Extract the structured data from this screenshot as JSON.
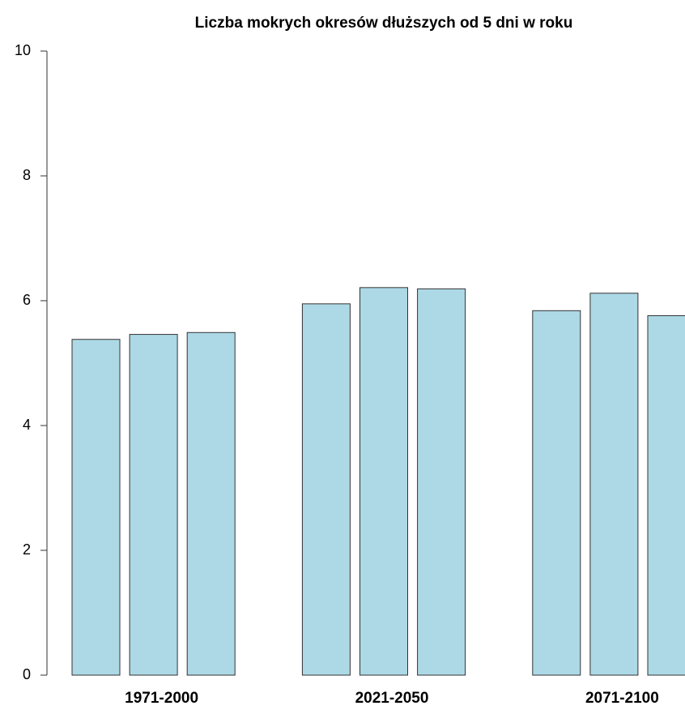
{
  "chart_data": {
    "type": "bar",
    "title": "Liczba mokrych okresów dłuższych od 5 dni w roku",
    "categories": [
      null,
      "1971-2000",
      null,
      null,
      null,
      "2021-2050",
      null,
      null,
      null,
      "2071-2100",
      null
    ],
    "values": [
      5.38,
      5.46,
      5.49,
      0,
      5.95,
      6.21,
      6.19,
      0,
      5.84,
      6.12,
      5.76
    ],
    "color": "#add8e6",
    "ylim": [
      0,
      10
    ],
    "yticks": [
      0,
      2,
      4,
      6,
      8,
      10
    ],
    "grid": false
  }
}
